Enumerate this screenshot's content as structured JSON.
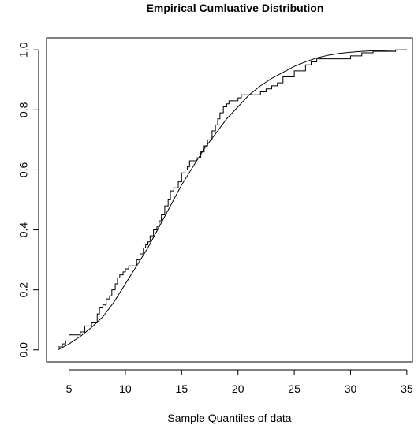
{
  "chart_data": {
    "type": "line",
    "title": "Empirical Cumluative Distribution",
    "xlabel": "Sample Quantiles of data",
    "ylabel": "",
    "xlim": [
      3.0,
      35.5
    ],
    "ylim": [
      -0.04,
      1.04
    ],
    "x_ticks": [
      5,
      10,
      15,
      20,
      25,
      30,
      35
    ],
    "x_tick_labels": [
      "5",
      "10",
      "15",
      "20",
      "25",
      "30",
      "35"
    ],
    "y_ticks": [
      0.0,
      0.2,
      0.4,
      0.6,
      0.8,
      1.0
    ],
    "y_tick_labels": [
      "0.0",
      "0.2",
      "0.4",
      "0.6",
      "0.8",
      "1.0"
    ],
    "grid": false,
    "legend": "none",
    "colors": {
      "line": "#000000",
      "axis": "#000000",
      "background": "#ffffff"
    },
    "series": [
      {
        "type": "step",
        "x": [
          4.0,
          4.4,
          4.7,
          5.0,
          5.1,
          6.0,
          6.4,
          7.0,
          7.5,
          7.7,
          8.0,
          8.3,
          8.6,
          8.8,
          9.1,
          9.3,
          9.5,
          9.8,
          10.0,
          10.3,
          11.0,
          11.3,
          11.6,
          11.8,
          12.0,
          12.2,
          12.5,
          12.8,
          13.0,
          13.2,
          13.5,
          13.8,
          14.0,
          14.3,
          14.7,
          15.0,
          15.3,
          15.5,
          15.7,
          16.0,
          16.3,
          16.7,
          17.0,
          17.3,
          17.7,
          18.0,
          18.2,
          18.4,
          18.7,
          19.0,
          19.2,
          19.5,
          20.0,
          20.3,
          21.0,
          22.0,
          22.5,
          23.0,
          23.5,
          24.0,
          25.0,
          26.0,
          26.5,
          27.0,
          27.2,
          30.0,
          31.0,
          31.5,
          32.0,
          34.0
        ],
        "y": [
          0.01,
          0.02,
          0.03,
          0.05,
          0.05,
          0.06,
          0.08,
          0.09,
          0.12,
          0.14,
          0.15,
          0.17,
          0.18,
          0.2,
          0.22,
          0.24,
          0.25,
          0.26,
          0.27,
          0.28,
          0.3,
          0.32,
          0.34,
          0.35,
          0.36,
          0.38,
          0.4,
          0.41,
          0.43,
          0.45,
          0.48,
          0.5,
          0.53,
          0.54,
          0.56,
          0.59,
          0.6,
          0.61,
          0.63,
          0.63,
          0.64,
          0.66,
          0.68,
          0.7,
          0.73,
          0.75,
          0.77,
          0.79,
          0.81,
          0.82,
          0.83,
          0.83,
          0.84,
          0.85,
          0.85,
          0.86,
          0.87,
          0.88,
          0.89,
          0.91,
          0.93,
          0.95,
          0.96,
          0.97,
          0.97,
          0.98,
          0.99,
          0.99,
          0.995,
          1.0
        ]
      },
      {
        "type": "curve",
        "x": [
          4.0,
          5.0,
          6.0,
          7.0,
          8.0,
          9.0,
          10.0,
          11.0,
          12.0,
          13.0,
          14.0,
          15.0,
          16.0,
          17.0,
          18.0,
          19.0,
          20.0,
          21.0,
          22.0,
          23.0,
          24.0,
          25.0,
          26.0,
          27.0,
          28.0,
          29.0,
          30.0,
          31.0,
          32.0,
          33.0,
          34.0,
          35.0
        ],
        "y": [
          0.0,
          0.02,
          0.045,
          0.075,
          0.11,
          0.16,
          0.22,
          0.28,
          0.34,
          0.41,
          0.48,
          0.55,
          0.61,
          0.67,
          0.72,
          0.77,
          0.81,
          0.85,
          0.88,
          0.905,
          0.925,
          0.945,
          0.96,
          0.973,
          0.982,
          0.988,
          0.992,
          0.995,
          0.997,
          0.998,
          0.999,
          1.0
        ]
      }
    ]
  }
}
